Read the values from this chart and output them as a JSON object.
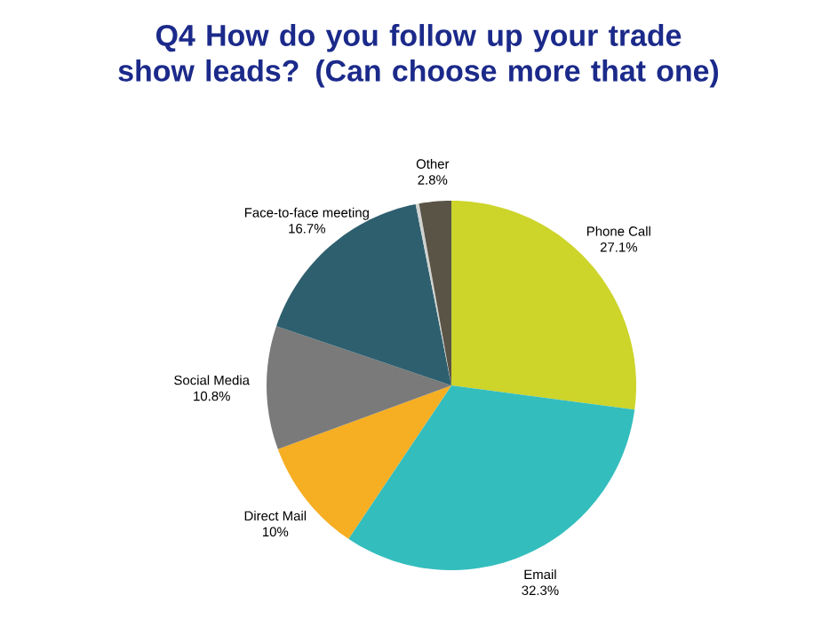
{
  "chart_data": {
    "type": "pie",
    "title": "Q4 How do you follow up your trade show leads? (Can choose more that one)",
    "categories": [
      "Phone Call",
      "Email",
      "Direct Mail",
      "Social Media",
      "Face-to-face meeting",
      null,
      "Other"
    ],
    "values": [
      27.1,
      32.3,
      10,
      10.8,
      16.7,
      0.3,
      2.8
    ],
    "value_labels": [
      "27.1%",
      "32.3%",
      "10%",
      "10.8%",
      "16.7%",
      null,
      "2.8%"
    ],
    "colors": [
      "#cdd42a",
      "#34bdbd",
      "#f6ae22",
      "#7a7a7a",
      "#2e5f6e",
      "#d0d3d0",
      "#5a5446"
    ]
  }
}
